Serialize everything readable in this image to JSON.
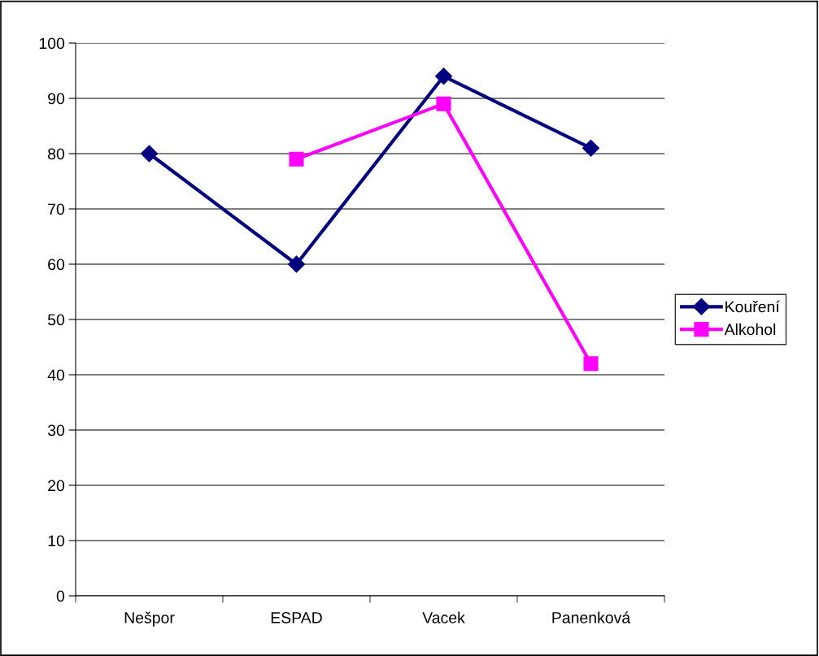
{
  "chart_data": {
    "type": "line",
    "categories": [
      "Nešpor",
      "ESPAD",
      "Vacek",
      "Panenková"
    ],
    "series": [
      {
        "name": "Kouření",
        "color": "#000080",
        "marker": "diamond",
        "values": [
          80,
          60,
          94,
          81
        ]
      },
      {
        "name": "Alkohol",
        "color": "#ff00ff",
        "marker": "square",
        "values": [
          null,
          79,
          89,
          42
        ]
      }
    ],
    "ylim": [
      0,
      100
    ],
    "yticks": [
      0,
      10,
      20,
      30,
      40,
      50,
      60,
      70,
      80,
      90,
      100
    ],
    "grid": "y",
    "legend": "right",
    "line_style": "solid"
  }
}
